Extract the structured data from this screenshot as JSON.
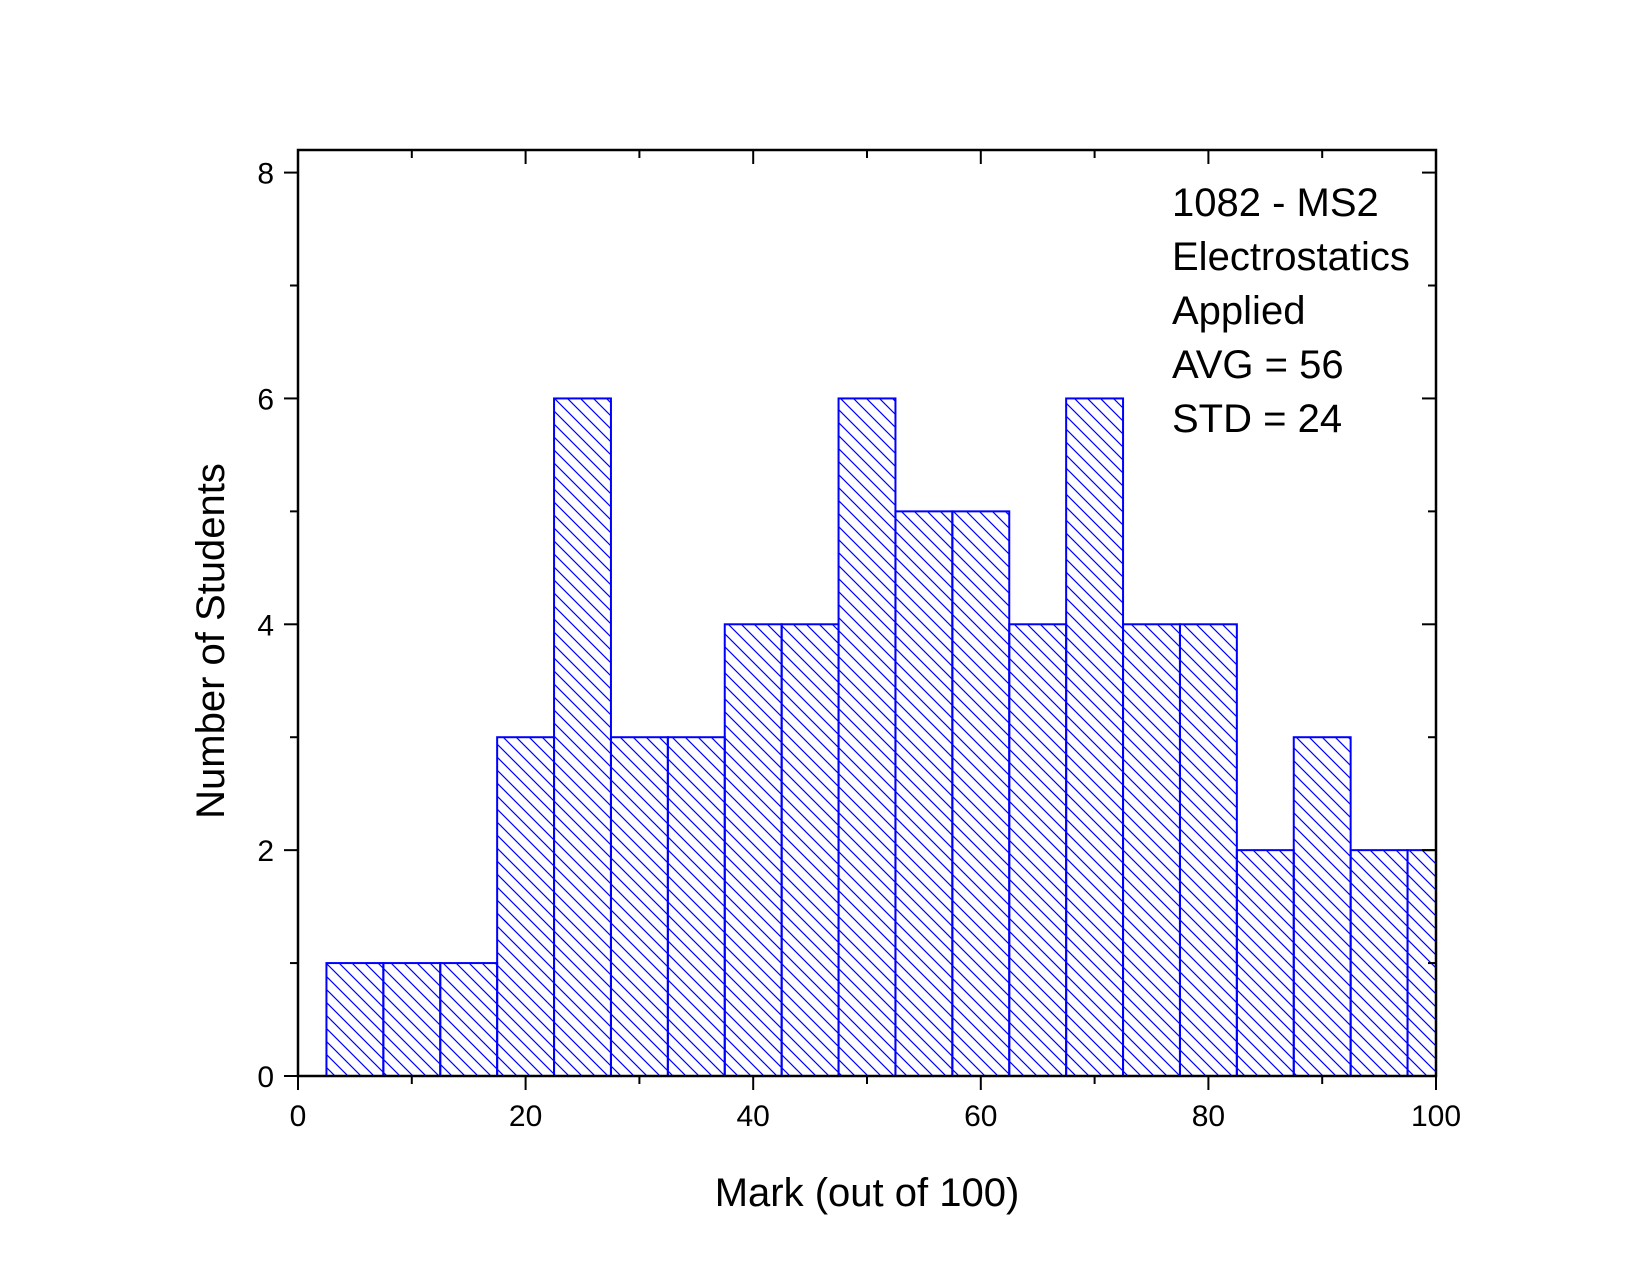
{
  "chart_data": {
    "type": "bar",
    "subtype": "histogram",
    "bin_width": 5,
    "x": [
      5,
      10,
      15,
      20,
      25,
      30,
      35,
      40,
      45,
      50,
      55,
      60,
      65,
      70,
      75,
      80,
      85,
      90,
      95,
      100
    ],
    "values": [
      1,
      1,
      1,
      3,
      6,
      3,
      3,
      4,
      4,
      6,
      5,
      5,
      4,
      6,
      4,
      4,
      2,
      3,
      2,
      2
    ],
    "xlabel": "Mark (out of 100)",
    "ylabel": "Number of Students",
    "xlim": [
      0,
      100
    ],
    "ylim": [
      0,
      8.2
    ],
    "x_ticks": [
      0,
      20,
      40,
      60,
      80,
      100
    ],
    "x_tick_labels": [
      "0",
      "20",
      "40",
      "60",
      "80",
      "100"
    ],
    "y_ticks": [
      0,
      2,
      4,
      6,
      8
    ],
    "y_tick_labels": [
      "0",
      "2",
      "4",
      "6",
      "8"
    ],
    "annotation_lines": [
      "1082 - MS2",
      "Electrostatics",
      "Applied",
      "AVG = 56",
      "STD = 24"
    ],
    "bar_color": "#0000ff",
    "bar_fill": "diagonal-hatch",
    "grid": false,
    "legend": "none"
  }
}
